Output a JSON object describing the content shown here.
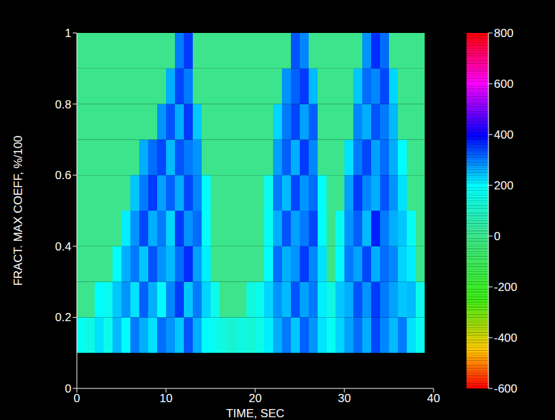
{
  "chart_data": {
    "type": "heatmap",
    "xlabel": "TIME, SEC",
    "ylabel": "FRACT. MAX COEFF, %/100",
    "xlim": [
      0,
      40
    ],
    "xticks": [
      0,
      10,
      20,
      30,
      40
    ],
    "ylim": [
      0,
      1
    ],
    "yticks": [
      0,
      0.2,
      0.4,
      0.6,
      0.8,
      1
    ],
    "x_edges": [
      0,
      1,
      2,
      3,
      4,
      5,
      6,
      7,
      8,
      9,
      10,
      11,
      12,
      13,
      14,
      15,
      16,
      17,
      18,
      19,
      20,
      21,
      22,
      23,
      24,
      25,
      26,
      27,
      28,
      29,
      30,
      31,
      32,
      33,
      34,
      35,
      36,
      37,
      38,
      39
    ],
    "y_edges": [
      0.1,
      0.2,
      0.3,
      0.4,
      0.5,
      0.6,
      0.7,
      0.8,
      0.9,
      1.0
    ],
    "cells": [
      [
        180,
        150,
        220,
        160,
        250,
        200,
        300,
        260,
        220,
        310,
        280,
        240,
        330,
        260,
        200,
        170,
        140,
        120,
        150,
        130,
        160,
        210,
        260,
        300,
        240,
        320,
        280,
        220,
        180,
        230,
        270,
        310,
        260,
        340,
        290,
        250,
        300,
        220,
        170
      ],
      [
        0,
        0,
        200,
        170,
        240,
        280,
        220,
        320,
        260,
        200,
        290,
        350,
        240,
        300,
        230,
        160,
        0,
        0,
        0,
        140,
        170,
        230,
        280,
        250,
        330,
        270,
        300,
        210,
        150,
        240,
        260,
        330,
        280,
        350,
        300,
        270,
        240,
        250,
        160
      ],
      [
        0,
        0,
        0,
        0,
        190,
        260,
        300,
        240,
        330,
        280,
        250,
        310,
        360,
        270,
        210,
        0,
        0,
        0,
        0,
        0,
        0,
        200,
        310,
        260,
        280,
        350,
        290,
        220,
        0,
        200,
        300,
        270,
        340,
        260,
        310,
        290,
        230,
        210,
        0
      ],
      [
        0,
        0,
        0,
        0,
        0,
        210,
        280,
        340,
        260,
        300,
        230,
        350,
        280,
        310,
        190,
        0,
        0,
        0,
        0,
        0,
        0,
        180,
        260,
        330,
        270,
        300,
        340,
        200,
        0,
        170,
        280,
        320,
        250,
        370,
        300,
        260,
        240,
        180,
        0
      ],
      [
        0,
        0,
        0,
        0,
        0,
        0,
        240,
        300,
        350,
        270,
        320,
        260,
        340,
        290,
        200,
        0,
        0,
        0,
        0,
        0,
        0,
        170,
        300,
        250,
        340,
        280,
        310,
        190,
        0,
        0,
        270,
        350,
        290,
        260,
        330,
        280,
        220,
        0,
        0
      ],
      [
        0,
        0,
        0,
        0,
        0,
        0,
        0,
        260,
        310,
        340,
        250,
        330,
        300,
        280,
        0,
        0,
        0,
        0,
        0,
        0,
        0,
        0,
        270,
        320,
        260,
        350,
        290,
        0,
        0,
        0,
        220,
        300,
        340,
        270,
        310,
        260,
        200,
        0,
        0
      ],
      [
        0,
        0,
        0,
        0,
        0,
        0,
        0,
        0,
        0,
        280,
        330,
        260,
        350,
        240,
        0,
        0,
        0,
        0,
        0,
        0,
        0,
        0,
        230,
        300,
        340,
        270,
        320,
        0,
        0,
        0,
        0,
        290,
        260,
        330,
        300,
        250,
        0,
        0,
        0
      ],
      [
        0,
        0,
        0,
        0,
        0,
        0,
        0,
        0,
        0,
        0,
        260,
        340,
        300,
        0,
        0,
        0,
        0,
        0,
        0,
        0,
        0,
        0,
        0,
        280,
        320,
        350,
        250,
        0,
        0,
        0,
        0,
        240,
        310,
        290,
        340,
        230,
        0,
        0,
        0
      ],
      [
        0,
        0,
        0,
        0,
        0,
        0,
        0,
        0,
        0,
        0,
        0,
        300,
        350,
        0,
        0,
        0,
        0,
        0,
        0,
        0,
        0,
        0,
        0,
        0,
        330,
        290,
        0,
        0,
        0,
        0,
        0,
        0,
        280,
        360,
        310,
        0,
        0,
        0,
        0
      ]
    ],
    "colorbar": {
      "range": [
        -600,
        800
      ],
      "ticks": [
        -600,
        -400,
        -200,
        0,
        200,
        400,
        600,
        800
      ]
    }
  }
}
